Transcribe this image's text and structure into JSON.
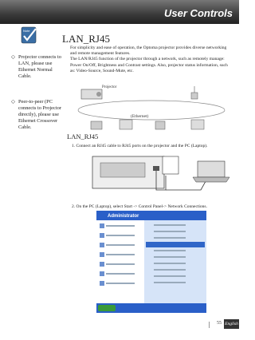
{
  "header": {
    "title": "User Controls"
  },
  "title": "LAN_RJ45",
  "intro": [
    "For simplicity and ease of operation, the Optoma projector provides diverse networking and remote management features.",
    "The LAN/RJ45 function of the projector through a network, such as remotely manage: Power On/Off, Brightness and Contrast settings. Also, projector status information, such as: Video-Source, Sound-Mute, etc."
  ],
  "diagram": {
    "projector_label": "Projector",
    "network_label": "(Ethernet)"
  },
  "sidebar": {
    "icon_label": "Note",
    "notes": [
      "Projector connects to LAN, please use Ethernet Normal Cable.",
      "Peer-to-peer (PC connects to Projector directly), please use Ethernet Crossover Cable."
    ]
  },
  "section": {
    "title": "LAN_RJ45",
    "steps": [
      "1. Connect an RJ45 cable to RJ45 ports on the projector and the PC (Laptop).",
      "2. On the PC (Laptop), select Start -> Control Panel-> Network Connections."
    ]
  },
  "screenshot": {
    "user": "Administrator"
  },
  "footer": {
    "page": "55",
    "language": "English"
  }
}
